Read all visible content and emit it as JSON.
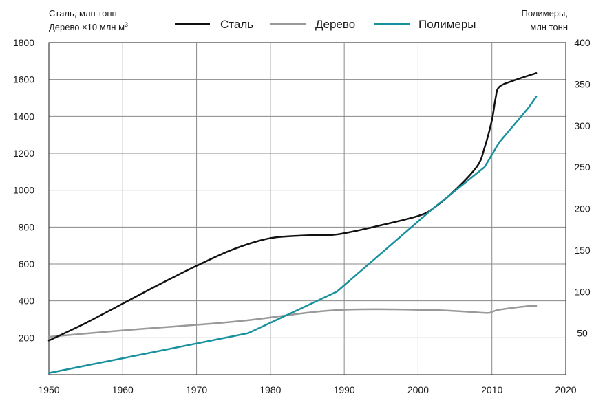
{
  "chart_data": {
    "type": "line",
    "left_axis_title_line1": "Сталь, млн тонн",
    "left_axis_title_line2": "Дерево ×10 млн м",
    "left_axis_title_sup": "3",
    "right_axis_title_line1": "Полимеры,",
    "right_axis_title_line2": "млн тонн",
    "xlim": [
      1950,
      2020
    ],
    "ylim_left": [
      0,
      1800
    ],
    "ylim_right": [
      0,
      400
    ],
    "x_ticks": [
      1950,
      1960,
      1970,
      1980,
      1990,
      2000,
      2010,
      2020
    ],
    "y_left_ticks": [
      200,
      400,
      600,
      800,
      1000,
      1200,
      1400,
      1600,
      1800
    ],
    "y_right_ticks": [
      50,
      100,
      150,
      200,
      250,
      300,
      350,
      400
    ],
    "grid": true,
    "legend_position": "top-center",
    "series": [
      {
        "name": "Сталь",
        "axis": "left",
        "color": "#111111",
        "points": [
          [
            1950,
            185
          ],
          [
            1955,
            280
          ],
          [
            1960,
            385
          ],
          [
            1965,
            490
          ],
          [
            1970,
            590
          ],
          [
            1975,
            680
          ],
          [
            1980,
            740
          ],
          [
            1985,
            755
          ],
          [
            1989,
            760
          ],
          [
            1995,
            810
          ],
          [
            2000,
            860
          ],
          [
            2002,
            900
          ],
          [
            2005,
            1000
          ],
          [
            2008,
            1130
          ],
          [
            2009,
            1230
          ],
          [
            2010,
            1380
          ],
          [
            2010.5,
            1500
          ],
          [
            2011,
            1560
          ],
          [
            2013,
            1595
          ],
          [
            2016,
            1635
          ]
        ]
      },
      {
        "name": "Дерево",
        "axis": "left",
        "color": "#999999",
        "points": [
          [
            1950,
            205
          ],
          [
            1960,
            240
          ],
          [
            1970,
            270
          ],
          [
            1977,
            295
          ],
          [
            1989,
            350
          ],
          [
            2002,
            350
          ],
          [
            2009,
            335
          ],
          [
            2010,
            340
          ],
          [
            2011,
            352
          ],
          [
            2015,
            372
          ],
          [
            2016,
            372
          ]
        ]
      },
      {
        "name": "Полимеры",
        "axis": "right",
        "color": "#17919d",
        "points": [
          [
            1950,
            2
          ],
          [
            1977,
            50
          ],
          [
            1989,
            100
          ],
          [
            2002,
            200
          ],
          [
            2009,
            250
          ],
          [
            2011,
            280
          ],
          [
            2015,
            322
          ],
          [
            2016,
            335
          ]
        ]
      }
    ]
  }
}
